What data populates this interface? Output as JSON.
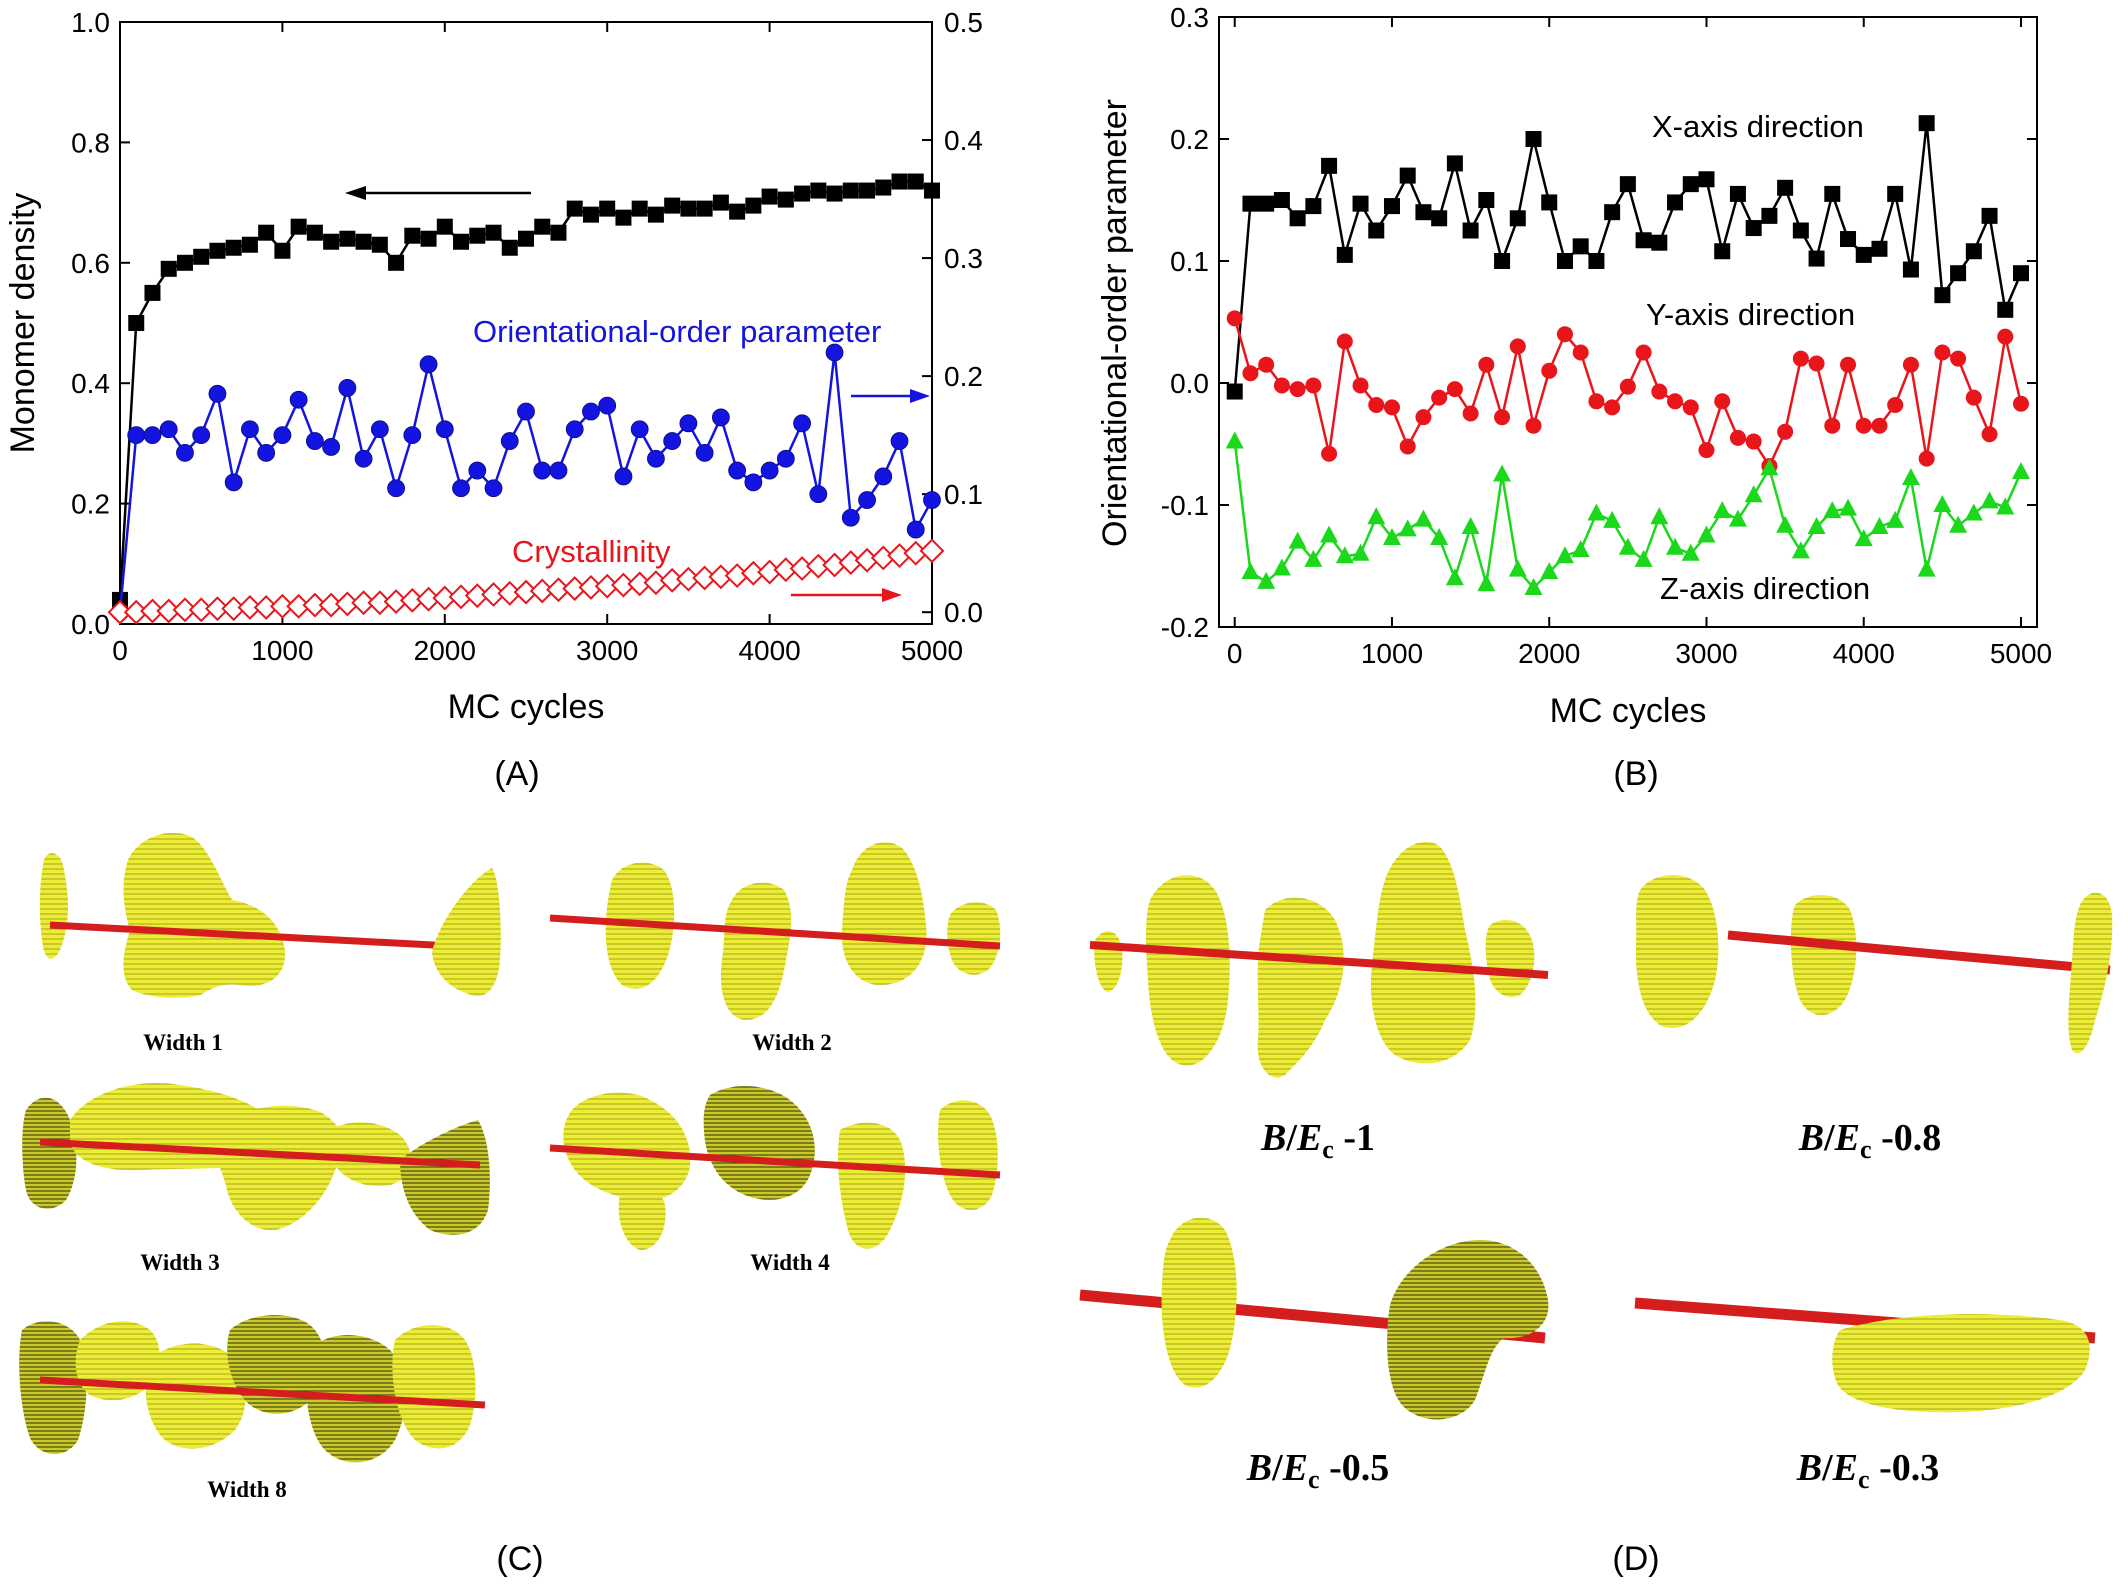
{
  "panels": {
    "A": {
      "caption": "(A)"
    },
    "B": {
      "caption": "(B)"
    },
    "C": {
      "caption": "(C)",
      "items": [
        {
          "label": "Width 1"
        },
        {
          "label": "Width 2"
        },
        {
          "label": "Width 3"
        },
        {
          "label": "Width 4"
        },
        {
          "label": "Width 8"
        }
      ]
    },
    "D": {
      "caption": "(D)",
      "items": [
        {
          "label_b": "B",
          "label_slash": "/",
          "label_e": "E",
          "label_sub": "c",
          "label_val": " -1"
        },
        {
          "label_b": "B",
          "label_slash": "/",
          "label_e": "E",
          "label_sub": "c",
          "label_val": " -0.8"
        },
        {
          "label_b": "B",
          "label_slash": "/",
          "label_e": "E",
          "label_sub": "c",
          "label_val": " -0.5"
        },
        {
          "label_b": "B",
          "label_slash": "/",
          "label_e": "E",
          "label_sub": "c",
          "label_val": " -0.3"
        }
      ]
    }
  },
  "colors": {
    "black_series": "#000000",
    "blue_series": "#1414e0",
    "red_series": "#e8151b",
    "green_series": "#1cd81c",
    "blob": "#eded35",
    "rod": "#d41d1d"
  },
  "chart_data": [
    {
      "type": "line",
      "panel": "A",
      "xlabel": "MC cycles",
      "ylabel": "Monomer density",
      "xlim": [
        0,
        5000
      ],
      "ylim": [
        0,
        1.0
      ],
      "y2lim": [
        -0.01,
        0.5
      ],
      "xticks": [
        "0",
        "1000",
        "2000",
        "3000",
        "4000",
        "5000"
      ],
      "yticks": [
        "0.0",
        "0.2",
        "0.4",
        "0.6",
        "0.8",
        "1.0"
      ],
      "y2ticks": [
        "0.0",
        "0.1",
        "0.2",
        "0.3",
        "0.4",
        "0.5"
      ],
      "grid": false,
      "annotations": [
        "Orientational-order parameter",
        "Crystallinity"
      ],
      "x": [
        0,
        100,
        200,
        300,
        400,
        500,
        600,
        700,
        800,
        900,
        1000,
        1100,
        1200,
        1300,
        1400,
        1500,
        1600,
        1700,
        1800,
        1900,
        2000,
        2100,
        2200,
        2300,
        2400,
        2500,
        2600,
        2700,
        2800,
        2900,
        3000,
        3100,
        3200,
        3300,
        3400,
        3500,
        3600,
        3700,
        3800,
        3900,
        4000,
        4100,
        4200,
        4300,
        4400,
        4500,
        4600,
        4700,
        4800,
        4900,
        5000
      ],
      "series": [
        {
          "name": "Monomer density",
          "axis": "left",
          "marker": "square",
          "color": "#000000",
          "values": [
            0.04,
            0.5,
            0.55,
            0.59,
            0.6,
            0.61,
            0.62,
            0.625,
            0.63,
            0.65,
            0.62,
            0.66,
            0.65,
            0.635,
            0.64,
            0.635,
            0.63,
            0.6,
            0.645,
            0.64,
            0.66,
            0.635,
            0.645,
            0.65,
            0.625,
            0.64,
            0.66,
            0.65,
            0.69,
            0.68,
            0.69,
            0.675,
            0.69,
            0.68,
            0.695,
            0.69,
            0.69,
            0.7,
            0.685,
            0.695,
            0.71,
            0.705,
            0.715,
            0.72,
            0.715,
            0.72,
            0.72,
            0.725,
            0.735,
            0.735,
            0.72
          ]
        },
        {
          "name": "Orientational-order parameter",
          "axis": "right",
          "marker": "circle",
          "color": "#1414e0",
          "values": [
            0.0,
            0.15,
            0.15,
            0.155,
            0.135,
            0.15,
            0.185,
            0.11,
            0.155,
            0.135,
            0.15,
            0.18,
            0.145,
            0.14,
            0.19,
            0.13,
            0.155,
            0.105,
            0.15,
            0.21,
            0.155,
            0.105,
            0.12,
            0.105,
            0.145,
            0.17,
            0.12,
            0.12,
            0.155,
            0.17,
            0.175,
            0.115,
            0.155,
            0.13,
            0.145,
            0.16,
            0.135,
            0.165,
            0.12,
            0.11,
            0.12,
            0.13,
            0.16,
            0.1,
            0.22,
            0.08,
            0.095,
            0.115,
            0.145,
            0.07,
            0.095
          ]
        },
        {
          "name": "Crystallinity",
          "axis": "right",
          "marker": "diamond-open",
          "color": "#e8151b",
          "values": [
            0.0,
            0.0,
            0.001,
            0.001,
            0.002,
            0.002,
            0.003,
            0.003,
            0.004,
            0.004,
            0.005,
            0.005,
            0.006,
            0.006,
            0.007,
            0.008,
            0.008,
            0.009,
            0.01,
            0.011,
            0.012,
            0.013,
            0.014,
            0.015,
            0.016,
            0.017,
            0.018,
            0.019,
            0.02,
            0.021,
            0.022,
            0.023,
            0.024,
            0.025,
            0.027,
            0.028,
            0.029,
            0.03,
            0.031,
            0.033,
            0.034,
            0.036,
            0.037,
            0.039,
            0.04,
            0.042,
            0.044,
            0.046,
            0.048,
            0.05,
            0.052
          ]
        }
      ]
    },
    {
      "type": "line",
      "panel": "B",
      "xlabel": "MC cycles",
      "ylabel": "Orientational-order parameter",
      "xlim": [
        -100,
        5000
      ],
      "ylim": [
        -0.2,
        0.3
      ],
      "xticks": [
        "0",
        "1000",
        "2000",
        "3000",
        "4000",
        "5000"
      ],
      "yticks": [
        "-0.2",
        "-0.1",
        "0.0",
        "0.1",
        "0.2",
        "0.3"
      ],
      "grid": false,
      "x": [
        0,
        100,
        200,
        300,
        400,
        500,
        600,
        700,
        800,
        900,
        1000,
        1100,
        1200,
        1300,
        1400,
        1500,
        1600,
        1700,
        1800,
        1900,
        2000,
        2100,
        2200,
        2300,
        2400,
        2500,
        2600,
        2700,
        2800,
        2900,
        3000,
        3100,
        3200,
        3300,
        3400,
        3500,
        3600,
        3700,
        3800,
        3900,
        4000,
        4100,
        4200,
        4300,
        4400,
        4500,
        4600,
        4700,
        4800,
        4900,
        5000
      ],
      "series": [
        {
          "name": "X-axis direction",
          "marker": "square",
          "color": "#000000",
          "values": [
            -0.007,
            0.147,
            0.147,
            0.15,
            0.135,
            0.145,
            0.178,
            0.105,
            0.147,
            0.125,
            0.145,
            0.17,
            0.14,
            0.135,
            0.18,
            0.125,
            0.15,
            0.1,
            0.135,
            0.2,
            0.148,
            0.1,
            0.112,
            0.1,
            0.14,
            0.163,
            0.117,
            0.115,
            0.148,
            0.163,
            0.167,
            0.108,
            0.155,
            0.127,
            0.137,
            0.16,
            0.125,
            0.102,
            0.155,
            0.118,
            0.105,
            0.11,
            0.155,
            0.093,
            0.213,
            0.072,
            0.09,
            0.108,
            0.137,
            0.06,
            0.09
          ]
        },
        {
          "name": "Y-axis direction",
          "marker": "circle",
          "color": "#e8151b",
          "values": [
            0.053,
            0.008,
            0.015,
            -0.002,
            -0.005,
            -0.002,
            -0.058,
            0.034,
            -0.002,
            -0.018,
            -0.02,
            -0.052,
            -0.028,
            -0.012,
            -0.005,
            -0.025,
            0.015,
            -0.028,
            0.03,
            -0.035,
            0.01,
            0.04,
            0.025,
            -0.015,
            -0.02,
            -0.003,
            0.025,
            -0.007,
            -0.015,
            -0.02,
            -0.055,
            -0.015,
            -0.045,
            -0.048,
            -0.068,
            -0.04,
            0.02,
            0.016,
            -0.035,
            0.015,
            -0.035,
            -0.035,
            -0.018,
            0.015,
            -0.062,
            0.025,
            0.02,
            -0.012,
            -0.042,
            0.038,
            -0.017
          ]
        },
        {
          "name": "Z-axis direction",
          "marker": "triangle",
          "color": "#1cd81c",
          "values": [
            -0.048,
            -0.155,
            -0.163,
            -0.152,
            -0.13,
            -0.145,
            -0.125,
            -0.142,
            -0.14,
            -0.11,
            -0.127,
            -0.12,
            -0.112,
            -0.127,
            -0.16,
            -0.118,
            -0.165,
            -0.075,
            -0.153,
            -0.168,
            -0.155,
            -0.142,
            -0.137,
            -0.107,
            -0.113,
            -0.135,
            -0.145,
            -0.11,
            -0.135,
            -0.14,
            -0.125,
            -0.105,
            -0.112,
            -0.092,
            -0.07,
            -0.117,
            -0.138,
            -0.118,
            -0.105,
            -0.103,
            -0.128,
            -0.118,
            -0.113,
            -0.078,
            -0.153,
            -0.1,
            -0.117,
            -0.107,
            -0.097,
            -0.102,
            -0.073
          ]
        }
      ]
    }
  ]
}
